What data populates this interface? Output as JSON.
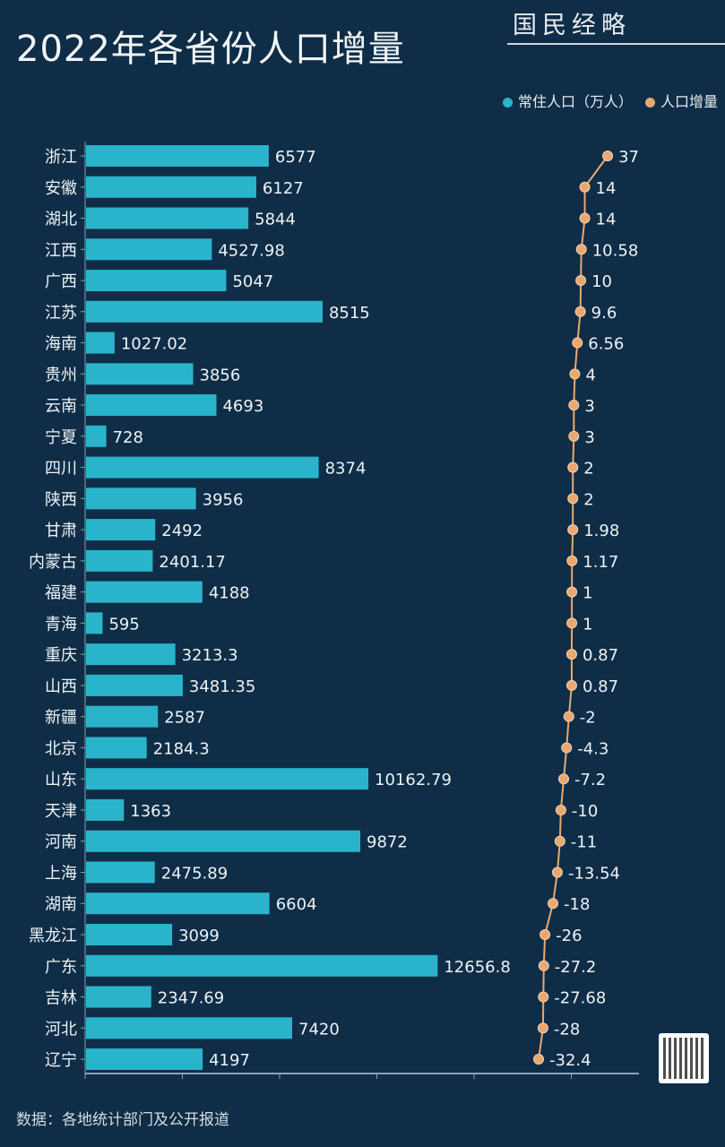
{
  "title": "2022年各省份人口增量",
  "brand": "国民经略",
  "source": "数据：各地统计部门及公开报道",
  "colors": {
    "bar": "#2ab4cc",
    "line": "#e9a870",
    "background": "#0f2d47"
  },
  "chart_data": {
    "type": "bar+line",
    "title": "2022年各省份人口增量",
    "legend_position": "top-right",
    "categories": [
      "浙江",
      "安徽",
      "湖北",
      "江西",
      "广西",
      "江苏",
      "海南",
      "贵州",
      "云南",
      "宁夏",
      "四川",
      "陕西",
      "甘肃",
      "内蒙古",
      "福建",
      "青海",
      "重庆",
      "山西",
      "新疆",
      "北京",
      "山东",
      "天津",
      "河南",
      "上海",
      "湖南",
      "黑龙江",
      "广东",
      "吉林",
      "河北",
      "辽宁"
    ],
    "series": [
      {
        "name": "常住人口（万人）",
        "type": "bar",
        "values": [
          6577,
          6127,
          5844,
          4527.98,
          5047,
          8515,
          1027.02,
          3856,
          4693,
          728,
          8374,
          3956,
          2492,
          2401.17,
          4188,
          595,
          3213.3,
          3481.35,
          2587,
          2184.3,
          10162.79,
          1363,
          9872,
          2475.89,
          6604,
          3099,
          12656.8,
          2347.69,
          7420,
          4197
        ]
      },
      {
        "name": "人口增量",
        "type": "line",
        "values": [
          37,
          14,
          14,
          10.58,
          10,
          9.6,
          6.56,
          4,
          3,
          3,
          2,
          2,
          1.98,
          1.17,
          1,
          1,
          0.87,
          0.87,
          -2,
          -4.3,
          -7.2,
          -10,
          -11,
          -13.54,
          -18,
          -26,
          -27.2,
          -27.68,
          -28,
          -32.4
        ]
      }
    ],
    "grid": false
  }
}
